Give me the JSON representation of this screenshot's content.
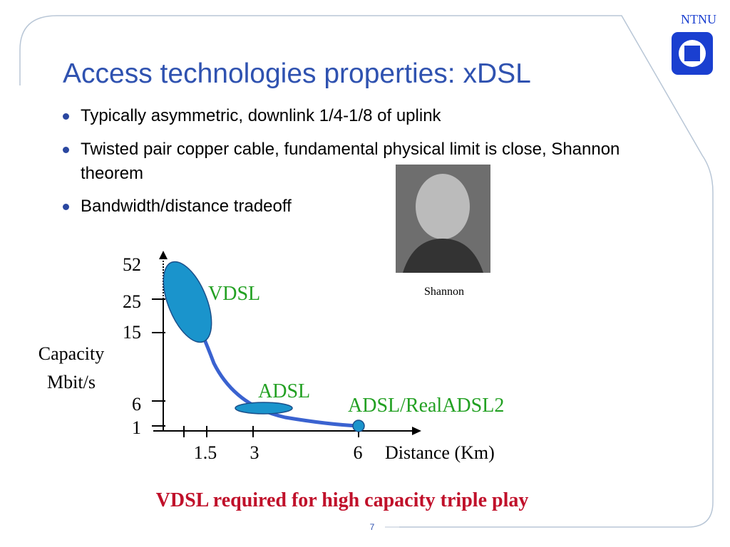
{
  "logo": "NTNU",
  "title": "Access technologies properties: xDSL",
  "bullets": [
    "Typically asymmetric, downlink 1/4-1/8 of uplink",
    "Twisted pair copper cable, fundamental physical limit is close, Shannon theorem",
    "Bandwidth/distance tradeoff"
  ],
  "photo_caption": "Shannon",
  "diagram": {
    "y_axis_label": "Capacity Mbit/s",
    "y_ticks": [
      "52",
      "25",
      "15",
      "6",
      "1"
    ],
    "x_ticks": [
      "1.5",
      "3",
      "6"
    ],
    "x_axis_label": "Distance (Km)",
    "regions": [
      "VDSL",
      "ADSL",
      "ADSL/RealADSL2"
    ]
  },
  "conclusion": "VDSL required for high capacity triple play",
  "page_number": "7"
}
